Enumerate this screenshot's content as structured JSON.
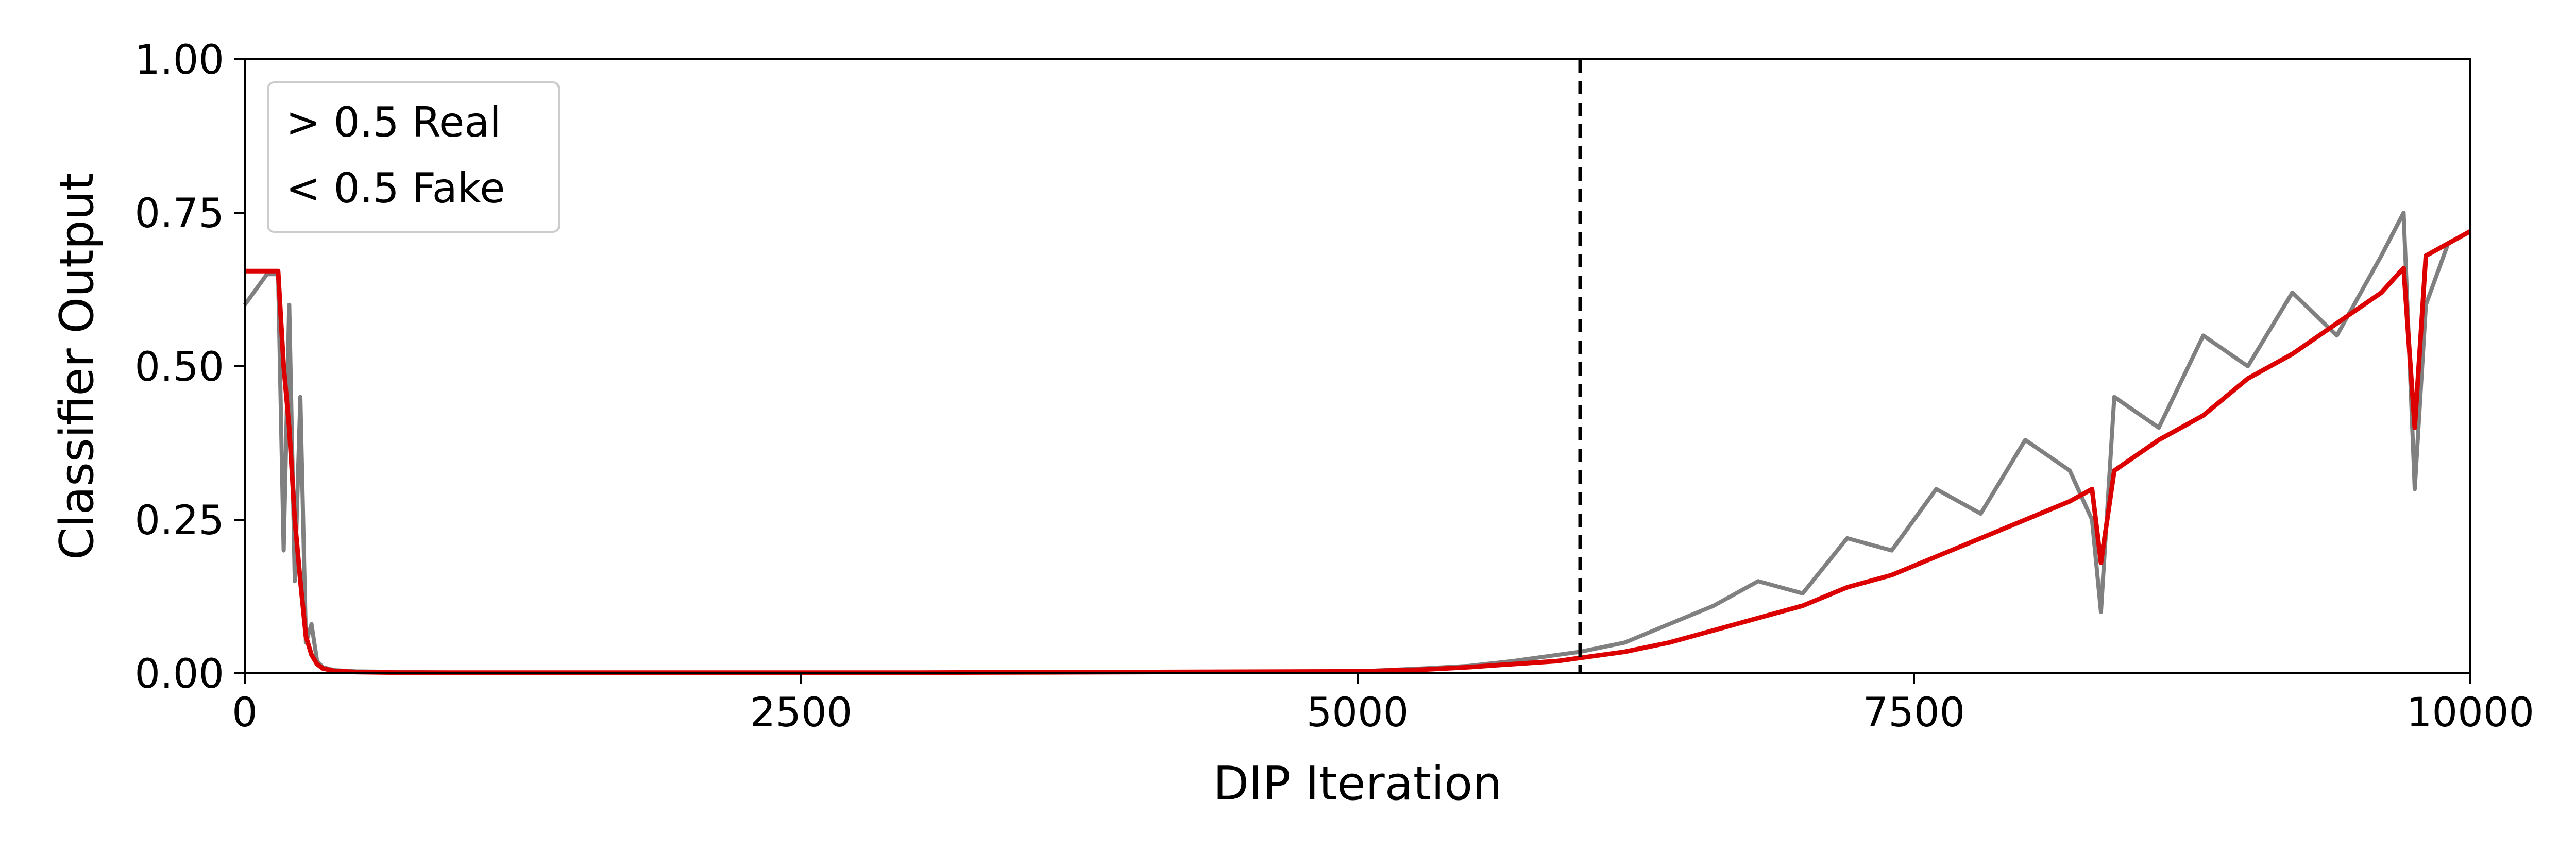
{
  "chart_data": {
    "type": "line",
    "xlabel": "DIP Iteration",
    "ylabel": "Classifier Output",
    "xlim": [
      0,
      10000
    ],
    "ylim": [
      0,
      1
    ],
    "x_ticks": [
      0,
      2500,
      5000,
      7500,
      10000
    ],
    "x_tick_labels": [
      "0",
      "2500",
      "5000",
      "7500",
      "10000"
    ],
    "y_ticks": [
      0,
      0.25,
      0.5,
      0.75,
      1.0
    ],
    "y_tick_labels": [
      "0.00",
      "0.25",
      "0.50",
      "0.75",
      "1.00"
    ],
    "grid": false,
    "legend_placement": "top-left",
    "legend_lines": [
      "> 0.5 Real",
      "< 0.5 Fake"
    ],
    "vline_x": 6000,
    "series": [
      {
        "color": "#808080",
        "x": [
          0,
          100,
          150,
          175,
          200,
          225,
          250,
          275,
          300,
          325,
          350,
          400,
          500,
          700,
          1000,
          2000,
          3000,
          4000,
          5000,
          5300,
          5500,
          5700,
          5900,
          6000,
          6200,
          6400,
          6600,
          6800,
          7000,
          7200,
          7400,
          7600,
          7800,
          8000,
          8200,
          8300,
          8340,
          8400,
          8600,
          8800,
          9000,
          9200,
          9400,
          9600,
          9700,
          9750,
          9800,
          9900,
          10000
        ],
        "y": [
          0.6,
          0.65,
          0.65,
          0.2,
          0.6,
          0.15,
          0.45,
          0.05,
          0.08,
          0.02,
          0.01,
          0.005,
          0.003,
          0.002,
          0.001,
          0.001,
          0.001,
          0.002,
          0.003,
          0.008,
          0.012,
          0.02,
          0.03,
          0.035,
          0.05,
          0.08,
          0.11,
          0.15,
          0.13,
          0.22,
          0.2,
          0.3,
          0.26,
          0.38,
          0.33,
          0.25,
          0.1,
          0.45,
          0.4,
          0.55,
          0.5,
          0.62,
          0.55,
          0.68,
          0.75,
          0.3,
          0.6,
          0.7,
          0.72
        ]
      },
      {
        "color": "#dd0000",
        "x": [
          0,
          100,
          150,
          175,
          200,
          225,
          250,
          275,
          300,
          325,
          350,
          400,
          500,
          700,
          1000,
          2000,
          3000,
          4000,
          5000,
          5300,
          5500,
          5700,
          5900,
          6000,
          6200,
          6400,
          6600,
          6800,
          7000,
          7200,
          7400,
          7600,
          7800,
          8000,
          8200,
          8300,
          8340,
          8400,
          8600,
          8800,
          9000,
          9200,
          9400,
          9600,
          9700,
          9750,
          9800,
          9900,
          10000
        ],
        "y": [
          0.655,
          0.655,
          0.655,
          0.5,
          0.4,
          0.25,
          0.15,
          0.06,
          0.03,
          0.015,
          0.008,
          0.004,
          0.002,
          0.001,
          0.001,
          0.001,
          0.001,
          0.002,
          0.003,
          0.006,
          0.01,
          0.015,
          0.02,
          0.025,
          0.035,
          0.05,
          0.07,
          0.09,
          0.11,
          0.14,
          0.16,
          0.19,
          0.22,
          0.25,
          0.28,
          0.3,
          0.18,
          0.33,
          0.38,
          0.42,
          0.48,
          0.52,
          0.57,
          0.62,
          0.66,
          0.4,
          0.68,
          0.7,
          0.72
        ]
      }
    ]
  }
}
